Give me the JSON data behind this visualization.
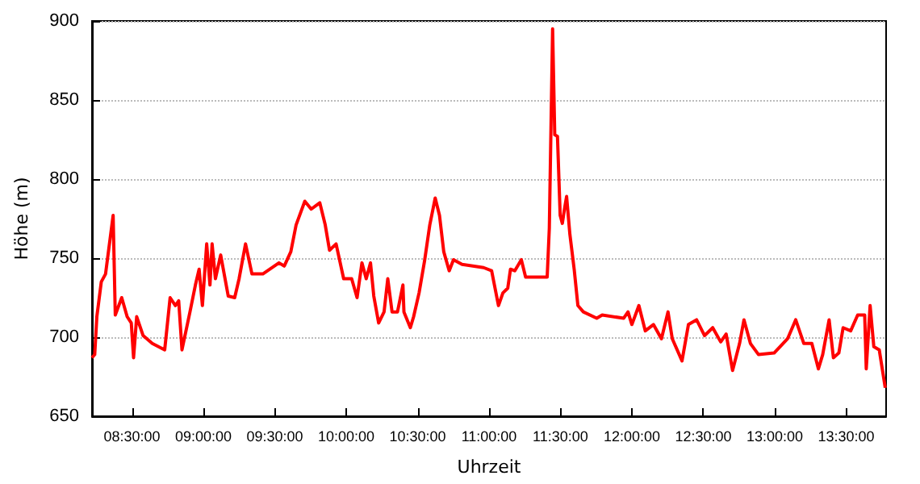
{
  "chart_data": {
    "type": "line",
    "xlabel": "Uhrzeit",
    "ylabel": "Höhe (m)",
    "xlim": [
      8.22,
      13.78
    ],
    "ylim": [
      650,
      900
    ],
    "xticks": [
      {
        "value": 8.5,
        "label": "08:30:00"
      },
      {
        "value": 9,
        "label": "09:00:00"
      },
      {
        "value": 9.5,
        "label": "09:30:00"
      },
      {
        "value": 10,
        "label": "10:00:00"
      },
      {
        "value": 10.5,
        "label": "10:30:00"
      },
      {
        "value": 11,
        "label": "11:00:00"
      },
      {
        "value": 11.5,
        "label": "11:30:00"
      },
      {
        "value": 12,
        "label": "12:00:00"
      },
      {
        "value": 12.5,
        "label": "12:30:00"
      },
      {
        "value": 13,
        "label": "13:00:00"
      },
      {
        "value": 13.5,
        "label": "13:30:00"
      }
    ],
    "yticks": [
      650,
      700,
      750,
      800,
      850,
      900
    ],
    "grid": "y",
    "marker": "none",
    "line_style": "solid",
    "series": [
      {
        "color": "#ff0000",
        "x": [
          8.22,
          8.239,
          8.254,
          8.285,
          8.315,
          8.368,
          8.383,
          8.428,
          8.466,
          8.495,
          8.511,
          8.533,
          8.578,
          8.642,
          8.729,
          8.767,
          8.804,
          8.827,
          8.85,
          8.906,
          8.944,
          8.97,
          8.993,
          9.023,
          9.046,
          9.061,
          9.084,
          9.121,
          9.174,
          9.219,
          9.25,
          9.295,
          9.34,
          9.416,
          9.529,
          9.566,
          9.612,
          9.649,
          9.71,
          9.755,
          9.815,
          9.853,
          9.883,
          9.929,
          9.982,
          10.038,
          10.076,
          10.11,
          10.14,
          10.17,
          10.193,
          10.227,
          10.265,
          10.291,
          10.321,
          10.359,
          10.397,
          10.404,
          10.449,
          10.472,
          10.51,
          10.548,
          10.585,
          10.623,
          10.653,
          10.683,
          10.721,
          10.751,
          10.811,
          10.962,
          11.018,
          11.066,
          11.097,
          11.131,
          11.15,
          11.18,
          11.226,
          11.256,
          11.301,
          11.407,
          11.422,
          11.445,
          11.46,
          11.479,
          11.498,
          11.513,
          11.528,
          11.543,
          11.566,
          11.596,
          11.622,
          11.66,
          11.754,
          11.792,
          11.943,
          11.973,
          12.0,
          12.049,
          12.094,
          12.151,
          12.207,
          12.253,
          12.283,
          12.351,
          12.396,
          12.453,
          12.509,
          12.566,
          12.622,
          12.66,
          12.705,
          12.754,
          12.785,
          12.83,
          12.887,
          12.996,
          13.09,
          13.147,
          13.204,
          13.26,
          13.306,
          13.336,
          13.381,
          13.411,
          13.449,
          13.479,
          13.532,
          13.581,
          13.63,
          13.641,
          13.668,
          13.694,
          13.732,
          13.774
        ],
        "values": [
          687,
          689,
          713,
          735,
          740,
          777,
          714,
          725,
          713,
          709,
          687,
          713,
          701,
          696,
          692,
          725,
          720,
          723,
          692,
          716,
          733,
          743,
          720,
          759,
          733,
          759,
          737,
          752,
          726,
          725,
          737,
          759,
          740,
          740,
          747,
          745,
          754,
          771,
          786,
          781,
          785,
          771,
          755,
          759,
          737,
          737,
          725,
          747,
          737,
          747,
          726,
          709,
          716,
          737,
          716,
          716,
          733,
          716,
          706,
          713,
          728,
          748,
          771,
          788,
          777,
          754,
          742,
          749,
          746,
          744,
          742,
          720,
          728,
          731,
          743,
          742,
          749,
          738,
          738,
          738,
          769,
          895,
          828,
          827,
          777,
          772,
          781,
          789,
          765,
          743,
          720,
          716,
          712,
          714,
          712,
          716,
          708,
          720,
          704,
          708,
          699,
          716,
          699,
          685,
          708,
          711,
          701,
          706,
          697,
          702,
          679,
          696,
          711,
          696,
          689,
          690,
          699,
          711,
          696,
          696,
          680,
          689,
          711,
          687,
          690,
          706,
          704,
          714,
          714,
          680,
          720,
          694,
          692,
          668
        ]
      }
    ]
  }
}
